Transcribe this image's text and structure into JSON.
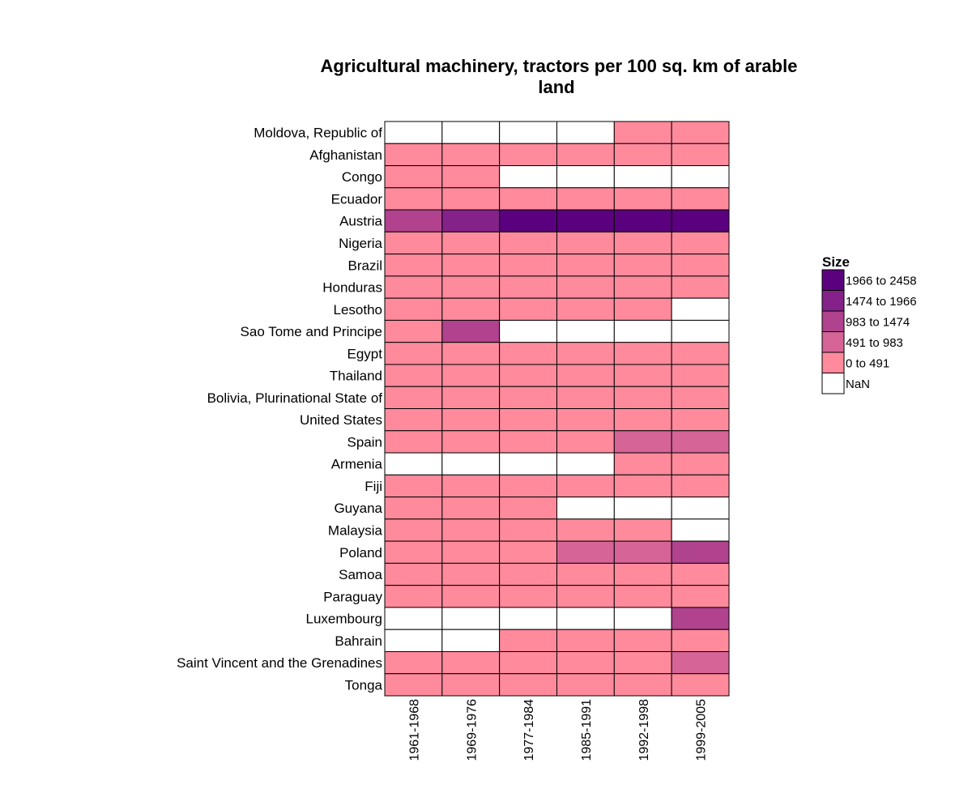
{
  "chart_data": {
    "type": "heatmap",
    "title": [
      "Agricultural machinery, tractors per 100 sq. km of arable",
      "land"
    ],
    "xlabel": "",
    "ylabel": "",
    "x_categories": [
      "1961-1968",
      "1969-1976",
      "1977-1984",
      "1985-1991",
      "1992-1998",
      "1999-2005"
    ],
    "y_categories": [
      "Moldova, Republic of",
      "Afghanistan",
      "Congo",
      "Ecuador",
      "Austria",
      "Nigeria",
      "Brazil",
      "Honduras",
      "Lesotho",
      "Sao Tome and Principe",
      "Egypt",
      "Thailand",
      "Bolivia, Plurinational State of",
      "United States",
      "Spain",
      "Armenia",
      "Fiji",
      "Guyana",
      "Malaysia",
      "Poland",
      "Samoa",
      "Paraguay",
      "Luxembourg",
      "Bahrain",
      "Saint Vincent and the Grenadines",
      "Tonga"
    ],
    "bins": [
      {
        "label": "1966 to 2458",
        "min": 1966,
        "max": 2458,
        "color": "#5b007e"
      },
      {
        "label": "1474 to 1966",
        "min": 1474,
        "max": 1966,
        "color": "#85228a"
      },
      {
        "label": "983 to 1474",
        "min": 983,
        "max": 1474,
        "color": "#b0428e"
      },
      {
        "label": "491 to 983",
        "min": 491,
        "max": 983,
        "color": "#d66496"
      },
      {
        "label": "0 to 491",
        "min": 0,
        "max": 491,
        "color": "#ff8a9c"
      },
      {
        "label": "NaN",
        "min": null,
        "max": null,
        "color": "#ffffff"
      }
    ],
    "legend": {
      "title": "Size",
      "placement": "right"
    },
    "grid": false,
    "cells": [
      [
        "NaN",
        "NaN",
        "NaN",
        "NaN",
        "0 to 491",
        "0 to 491"
      ],
      [
        "0 to 491",
        "0 to 491",
        "0 to 491",
        "0 to 491",
        "0 to 491",
        "0 to 491"
      ],
      [
        "0 to 491",
        "0 to 491",
        "NaN",
        "NaN",
        "NaN",
        "NaN"
      ],
      [
        "0 to 491",
        "0 to 491",
        "0 to 491",
        "0 to 491",
        "0 to 491",
        "0 to 491"
      ],
      [
        "983 to 1474",
        "1474 to 1966",
        "1966 to 2458",
        "1966 to 2458",
        "1966 to 2458",
        "1966 to 2458"
      ],
      [
        "0 to 491",
        "0 to 491",
        "0 to 491",
        "0 to 491",
        "0 to 491",
        "0 to 491"
      ],
      [
        "0 to 491",
        "0 to 491",
        "0 to 491",
        "0 to 491",
        "0 to 491",
        "0 to 491"
      ],
      [
        "0 to 491",
        "0 to 491",
        "0 to 491",
        "0 to 491",
        "0 to 491",
        "0 to 491"
      ],
      [
        "0 to 491",
        "0 to 491",
        "0 to 491",
        "0 to 491",
        "0 to 491",
        "NaN"
      ],
      [
        "0 to 491",
        "983 to 1474",
        "NaN",
        "NaN",
        "NaN",
        "NaN"
      ],
      [
        "0 to 491",
        "0 to 491",
        "0 to 491",
        "0 to 491",
        "0 to 491",
        "0 to 491"
      ],
      [
        "0 to 491",
        "0 to 491",
        "0 to 491",
        "0 to 491",
        "0 to 491",
        "0 to 491"
      ],
      [
        "0 to 491",
        "0 to 491",
        "0 to 491",
        "0 to 491",
        "0 to 491",
        "0 to 491"
      ],
      [
        "0 to 491",
        "0 to 491",
        "0 to 491",
        "0 to 491",
        "0 to 491",
        "0 to 491"
      ],
      [
        "0 to 491",
        "0 to 491",
        "0 to 491",
        "0 to 491",
        "491 to 983",
        "491 to 983"
      ],
      [
        "NaN",
        "NaN",
        "NaN",
        "NaN",
        "0 to 491",
        "0 to 491"
      ],
      [
        "0 to 491",
        "0 to 491",
        "0 to 491",
        "0 to 491",
        "0 to 491",
        "0 to 491"
      ],
      [
        "0 to 491",
        "0 to 491",
        "0 to 491",
        "NaN",
        "NaN",
        "NaN"
      ],
      [
        "0 to 491",
        "0 to 491",
        "0 to 491",
        "0 to 491",
        "0 to 491",
        "NaN"
      ],
      [
        "0 to 491",
        "0 to 491",
        "0 to 491",
        "491 to 983",
        "491 to 983",
        "983 to 1474"
      ],
      [
        "0 to 491",
        "0 to 491",
        "0 to 491",
        "0 to 491",
        "0 to 491",
        "0 to 491"
      ],
      [
        "0 to 491",
        "0 to 491",
        "0 to 491",
        "0 to 491",
        "0 to 491",
        "0 to 491"
      ],
      [
        "NaN",
        "NaN",
        "NaN",
        "NaN",
        "NaN",
        "983 to 1474"
      ],
      [
        "NaN",
        "NaN",
        "0 to 491",
        "0 to 491",
        "0 to 491",
        "0 to 491"
      ],
      [
        "0 to 491",
        "0 to 491",
        "0 to 491",
        "0 to 491",
        "0 to 491",
        "491 to 983"
      ],
      [
        "0 to 491",
        "0 to 491",
        "0 to 491",
        "0 to 491",
        "0 to 491",
        "0 to 491"
      ]
    ]
  }
}
